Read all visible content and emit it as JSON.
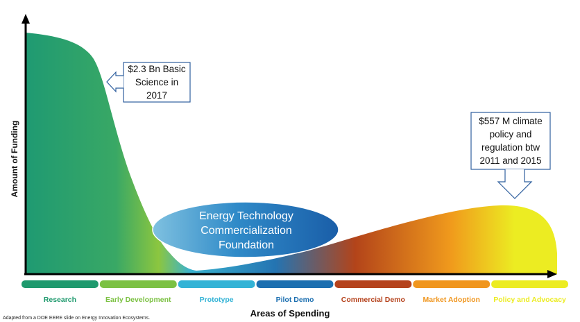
{
  "title": "",
  "axes": {
    "y_label": "Amount of Funding",
    "x_label": "Areas of Spending"
  },
  "callouts": {
    "research": [
      "$2.3 Bn Basic",
      "Science in",
      "2017"
    ],
    "policy": [
      "$557 M climate",
      "policy and",
      "regulation btw",
      "2011 and 2015"
    ]
  },
  "center_label": [
    "Energy Technology",
    "Commercialization",
    "Foundation"
  ],
  "stages": [
    {
      "label": "Research",
      "color": "#1f9a6e"
    },
    {
      "label": "Early Development",
      "color": "#7cc143"
    },
    {
      "label": "Prototype",
      "color": "#33b3d6"
    },
    {
      "label": "Pilot Demo",
      "color": "#1c6fb0"
    },
    {
      "label": "Commercial Demo",
      "color": "#b5421c"
    },
    {
      "label": "Market Adoption",
      "color": "#f0961e"
    },
    {
      "label": "Policy and Advocacy",
      "color": "#ecec22"
    }
  ],
  "footnote": "Adapted from a DOE EERE slide on Energy Innovation Ecosystems."
}
